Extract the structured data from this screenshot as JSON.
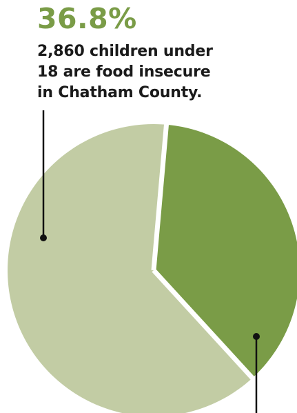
{
  "stat": {
    "percent": "36.8%",
    "caption_lines": [
      "2,860 children under",
      "18 are food insecure",
      "in Chatham County."
    ]
  },
  "colors": {
    "accent": "#7a9c47",
    "secondary": "#c2cca4",
    "text": "#1a1a1a",
    "leader": "#111111",
    "divider": "#ffffff"
  },
  "chart_data": {
    "type": "pie",
    "title": "",
    "slices": [
      {
        "label": "",
        "value": 36.8,
        "color": "#7a9c47"
      },
      {
        "label": "",
        "value": 63.2,
        "color": "#c2cca4"
      }
    ],
    "start_angle_deg": 5,
    "legend": "none"
  }
}
